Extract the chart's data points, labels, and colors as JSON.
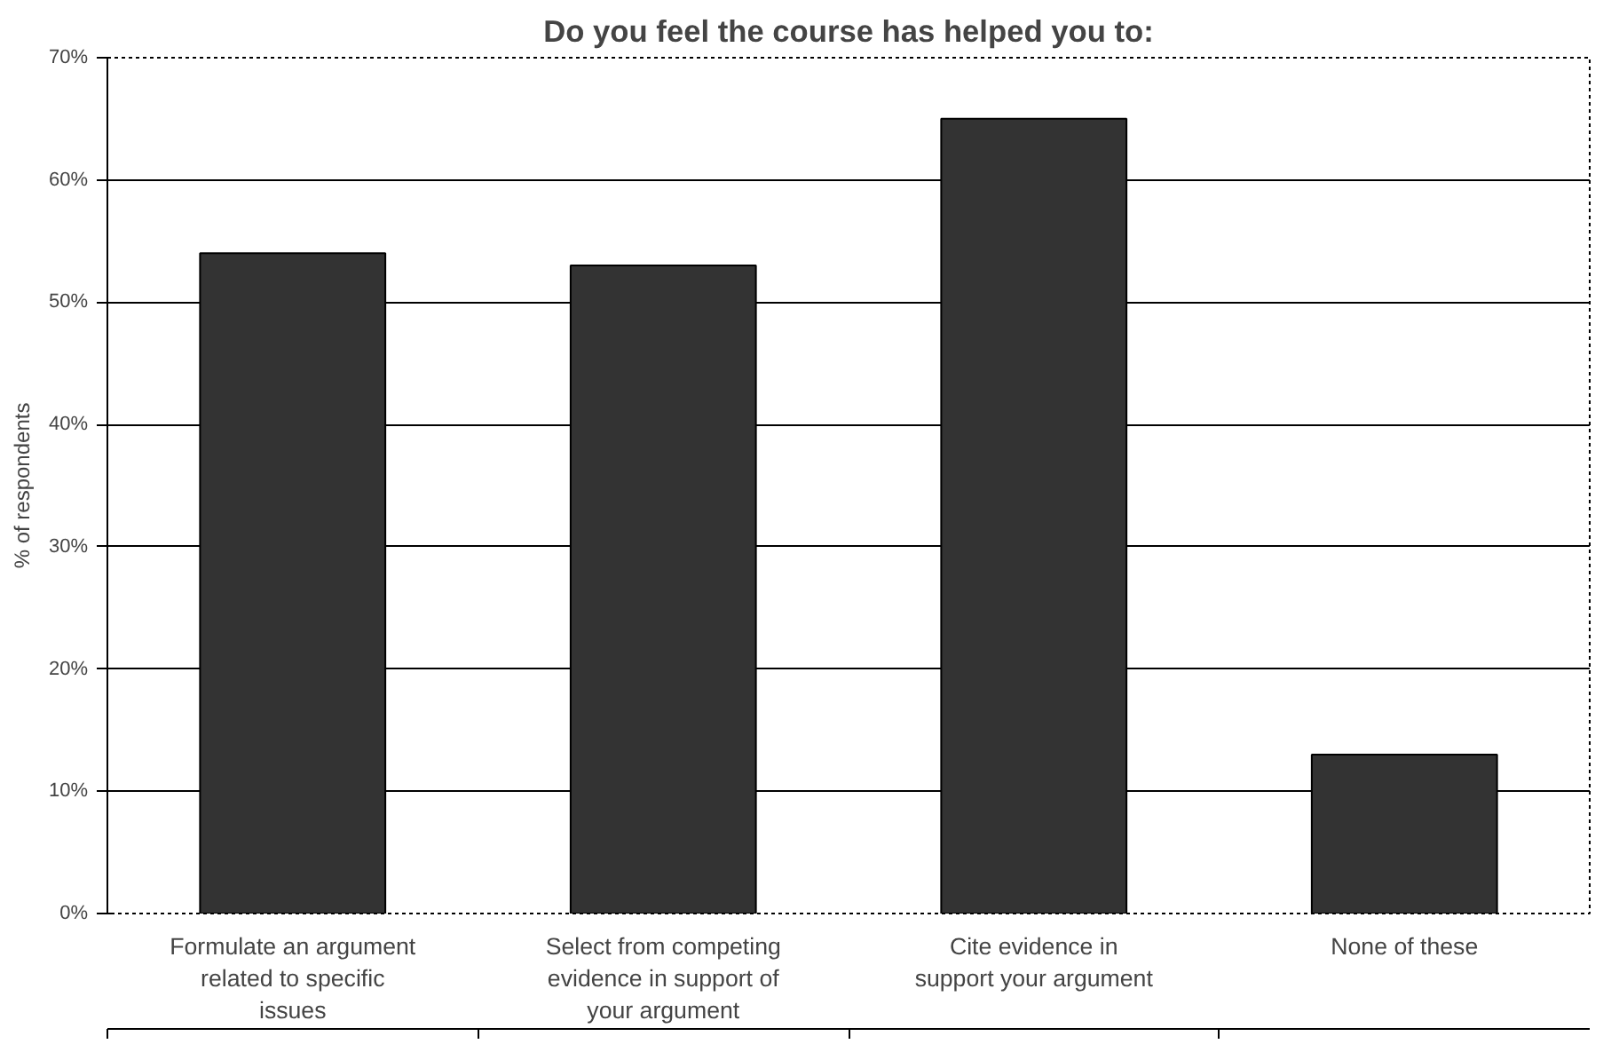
{
  "chart_data": {
    "type": "bar",
    "title": "Do you feel the course has helped you to:",
    "ylabel": "% of respondents",
    "categories": [
      "Formulate an argument related to specific issues",
      "Select from competing evidence in support of your argument",
      "Cite evidence in support your argument",
      "None of these"
    ],
    "values": [
      54,
      53,
      65,
      13
    ],
    "color": "#333333",
    "ylim": [
      0,
      70
    ],
    "yticks": [
      {
        "value": 0,
        "label": "0%"
      },
      {
        "value": 10,
        "label": "10%"
      },
      {
        "value": 20,
        "label": "20%"
      },
      {
        "value": 30,
        "label": "30%"
      },
      {
        "value": 40,
        "label": "40%"
      },
      {
        "value": 50,
        "label": "50%"
      },
      {
        "value": 60,
        "label": "60%"
      },
      {
        "value": 70,
        "label": "70%"
      }
    ],
    "grid": "y"
  }
}
